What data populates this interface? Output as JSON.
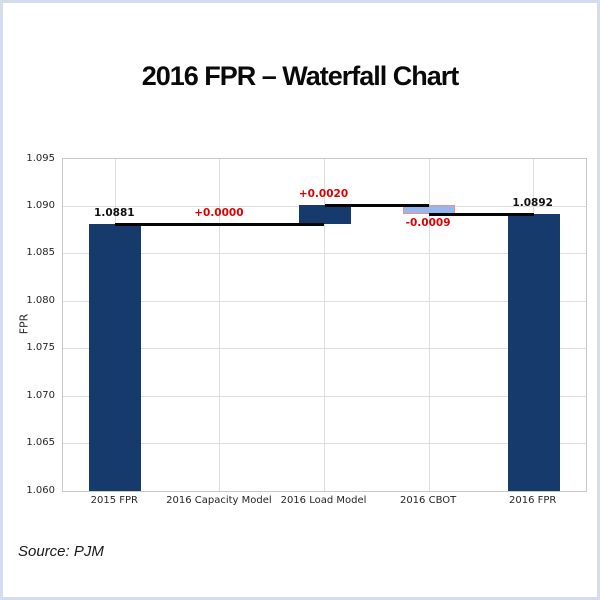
{
  "page": {
    "title": "2016 FPR – Waterfall Chart",
    "source": "Source: PJM"
  },
  "chart_data": {
    "type": "bar",
    "subtype": "waterfall",
    "title": "2016 FPR – Waterfall Chart",
    "xlabel": "",
    "ylabel": "FPR",
    "ylim": [
      1.06,
      1.095
    ],
    "ytick_step": 0.005,
    "ytick_labels": [
      "1.060",
      "1.065",
      "1.070",
      "1.075",
      "1.080",
      "1.085",
      "1.090",
      "1.095"
    ],
    "grid": true,
    "legend": "none",
    "categories": [
      "2015 FPR",
      "2016 Capacity Model",
      "2016 Load Model",
      "2016 CBOT",
      "2016 FPR"
    ],
    "bars": [
      {
        "category": "2015 FPR",
        "base": 1.06,
        "top": 1.0881,
        "value": 1.0881,
        "label": "1.0881",
        "label_color": "#111111",
        "label_pos": "above",
        "style": "total"
      },
      {
        "category": "2016 Capacity Model",
        "base": 1.0881,
        "top": 1.0881,
        "value": 0.0,
        "label": "+0.0000",
        "label_color": "#dd0000",
        "label_pos": "above",
        "style": "none"
      },
      {
        "category": "2016 Load Model",
        "base": 1.0881,
        "top": 1.0901,
        "value": 0.002,
        "label": "+0.0020",
        "label_color": "#dd0000",
        "label_pos": "above",
        "style": "increase"
      },
      {
        "category": "2016 CBOT",
        "base": 1.0892,
        "top": 1.0901,
        "value": -0.0009,
        "label": "-0.0009",
        "label_color": "#dd0000",
        "label_pos": "below",
        "style": "decrease"
      },
      {
        "category": "2016 FPR",
        "base": 1.06,
        "top": 1.0892,
        "value": 1.0892,
        "label": "1.0892",
        "label_color": "#111111",
        "label_pos": "above",
        "style": "total"
      }
    ],
    "connectors": [
      {
        "value": 1.0881,
        "from_cat": 0,
        "to_cat": 2
      },
      {
        "value": 1.0901,
        "from_cat": 2,
        "to_cat": 3
      },
      {
        "value": 1.0892,
        "from_cat": 3,
        "to_cat": 4
      }
    ],
    "colors": {
      "total": "#173a6d",
      "increase": "#173a6d",
      "decrease_fill": "#96b7ee",
      "decrease_border": "#ef8e8e",
      "connector": "#050505",
      "delta_label": "#dd0000",
      "total_label": "#111111",
      "gridline": "#dedede",
      "frame_border": "#d4ddeb"
    }
  }
}
